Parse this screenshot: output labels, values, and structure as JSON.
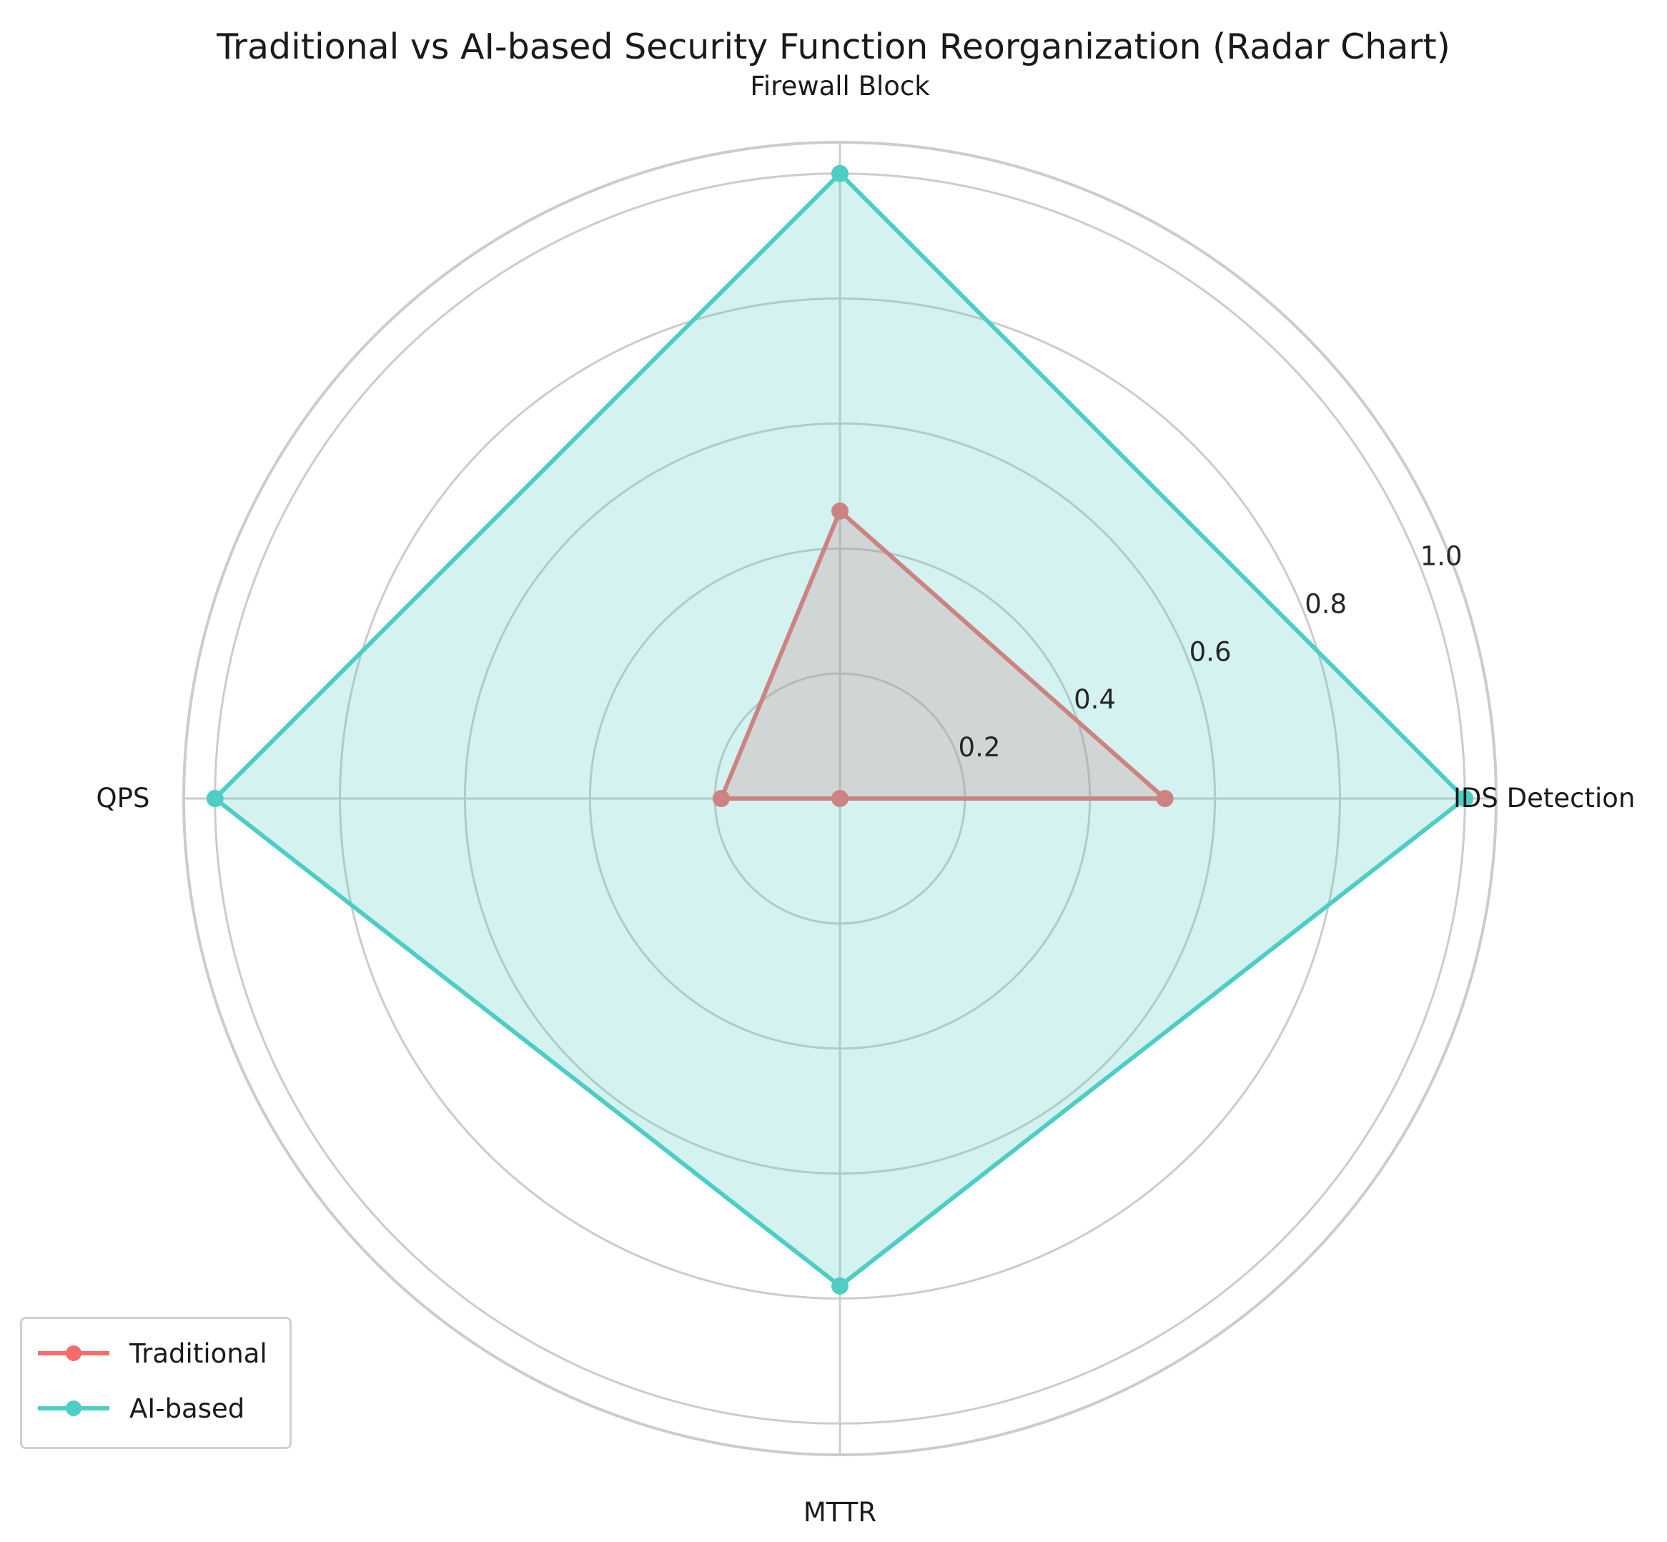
{
  "chart_data": {
    "type": "radar",
    "title": "Traditional vs AI-based Security Function Reorganization (Radar Chart)",
    "categories": [
      "IDS Detection",
      "Firewall Block",
      "QPS",
      "MTTR"
    ],
    "radial_ticks": [
      "0.2",
      "0.4",
      "0.6",
      "0.8",
      "1.0"
    ],
    "radial_tick_values": [
      0.2,
      0.4,
      0.6,
      0.8,
      1.0
    ],
    "rlim": [
      0,
      1.05
    ],
    "grid": true,
    "legend_position": "lower-left",
    "series": [
      {
        "name": "Traditional",
        "color": "#F66B6B",
        "values": [
          0.52,
          0.46,
          0.19,
          0.0
        ]
      },
      {
        "name": "AI-based",
        "color": "#4ECDC4",
        "values": [
          1.0,
          1.0,
          1.0,
          0.78
        ]
      }
    ]
  }
}
